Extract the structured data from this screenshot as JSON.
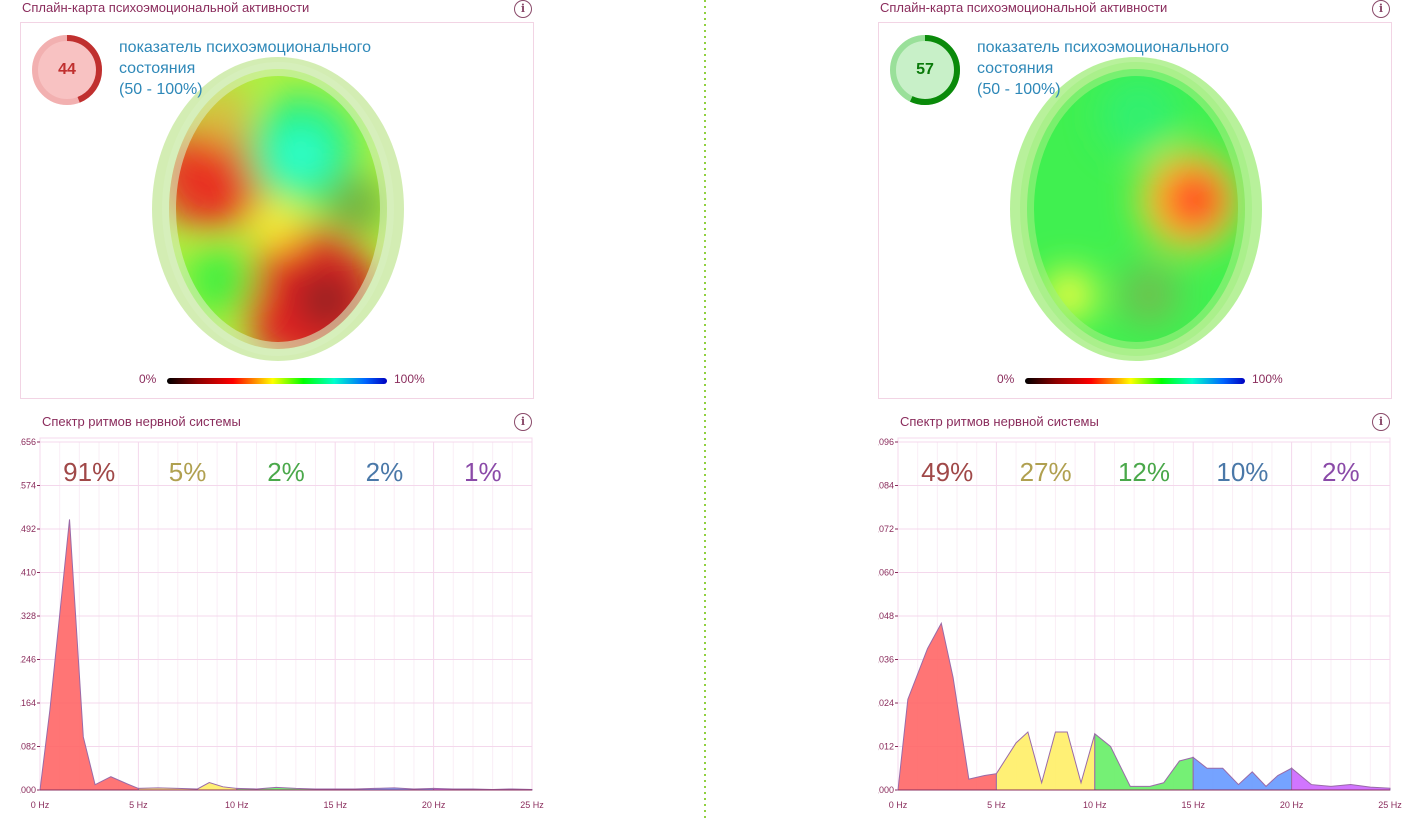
{
  "panels": [
    {
      "map_title": "Сплайн-карта психоэмоциональной активности",
      "gauge_value": "44",
      "gauge_fraction": 0.44,
      "gauge_color": "#c0302f",
      "gauge_fill": "#f8c2c2",
      "gauge_text_line1": "показатель психоэмоционального",
      "gauge_text_line2": "состояния",
      "gauge_text_line3": "(50 - 100%)",
      "scale_min": "0%",
      "scale_max": "100%",
      "spectrum_title": "Спектр ритмов нервной системы",
      "percents": [
        {
          "label": "91%",
          "color": "#a04848"
        },
        {
          "label": "5%",
          "color": "#b0a050"
        },
        {
          "label": "2%",
          "color": "#4aa84a"
        },
        {
          "label": "2%",
          "color": "#4a78a8"
        },
        {
          "label": "1%",
          "color": "#8a4aa8"
        }
      ],
      "chart_data": {
        "type": "area",
        "ylim": [
          0,
          0.656
        ],
        "y_ticks": [
          "0,656",
          "0,574",
          "0,492",
          "0,410",
          "0,328",
          "0,246",
          "0,164",
          "0,082",
          "0,000"
        ],
        "x_ticks": [
          "0 Hz",
          "5 Hz",
          "10 Hz",
          "15 Hz",
          "20 Hz",
          "25 Hz"
        ],
        "xlim": [
          0,
          25
        ],
        "series": [
          {
            "band": "delta",
            "color": "#ff6666",
            "x": [
              0,
              0.5,
              1.5,
              2.2,
              2.8,
              3.6,
              4.4,
              5
            ],
            "y": [
              0,
              0.15,
              0.51,
              0.1,
              0.01,
              0.025,
              0.012,
              0.003
            ]
          },
          {
            "band": "theta",
            "color": "#ffee66",
            "x": [
              5,
              6,
              7,
              8,
              8.6,
              9.3,
              10
            ],
            "y": [
              0.003,
              0.004,
              0.003,
              0.002,
              0.014,
              0.006,
              0.003
            ]
          },
          {
            "band": "alpha",
            "color": "#66ee66",
            "x": [
              10,
              11,
              12,
              13,
              14,
              15
            ],
            "y": [
              0.003,
              0.002,
              0.005,
              0.003,
              0.002,
              0.002
            ]
          },
          {
            "band": "beta",
            "color": "#6699ff",
            "x": [
              15,
              16,
              17,
              18,
              19,
              20
            ],
            "y": [
              0.002,
              0.002,
              0.003,
              0.004,
              0.002,
              0.003
            ]
          },
          {
            "band": "gamma",
            "color": "#cc66ff",
            "x": [
              20,
              21,
              22,
              23,
              24,
              25
            ],
            "y": [
              0.003,
              0.002,
              0.002,
              0.001,
              0.002,
              0.001
            ]
          }
        ]
      }
    },
    {
      "map_title": "Сплайн-карта психоэмоциональной активности",
      "gauge_value": "57",
      "gauge_fraction": 0.57,
      "gauge_color": "#0a8a0a",
      "gauge_fill": "#c8f0c8",
      "gauge_text_line1": "показатель психоэмоционального",
      "gauge_text_line2": "состояния",
      "gauge_text_line3": "(50 - 100%)",
      "scale_min": "0%",
      "scale_max": "100%",
      "spectrum_title": "Спектр ритмов нервной системы",
      "percents": [
        {
          "label": "49%",
          "color": "#a04848"
        },
        {
          "label": "27%",
          "color": "#b0a050"
        },
        {
          "label": "12%",
          "color": "#4aa84a"
        },
        {
          "label": "10%",
          "color": "#4a78a8"
        },
        {
          "label": "2%",
          "color": "#8a4aa8"
        }
      ],
      "chart_data": {
        "type": "area",
        "ylim": [
          0,
          0.096
        ],
        "y_ticks": [
          "0,096",
          "0,084",
          "0,072",
          "0,060",
          "0,048",
          "0,036",
          "0,024",
          "0,012",
          "0,000"
        ],
        "x_ticks": [
          "0 Hz",
          "5 Hz",
          "10 Hz",
          "15 Hz",
          "20 Hz",
          "25 Hz"
        ],
        "xlim": [
          0,
          25
        ],
        "series": [
          {
            "band": "delta",
            "color": "#ff6666",
            "x": [
              0,
              0.5,
              1.5,
              2.2,
              2.8,
              3.6,
              4.4,
              5
            ],
            "y": [
              0,
              0.025,
              0.039,
              0.046,
              0.031,
              0.003,
              0.004,
              0.0045
            ]
          },
          {
            "band": "theta",
            "color": "#ffee66",
            "x": [
              5,
              6,
              6.6,
              7.3,
              8,
              8.6,
              9.3,
              10
            ],
            "y": [
              0.0045,
              0.013,
              0.016,
              0.002,
              0.016,
              0.016,
              0.002,
              0.0155
            ]
          },
          {
            "band": "alpha",
            "color": "#66ee66",
            "x": [
              10,
              10.8,
              11.8,
              12.8,
              13.5,
              14.3,
              15
            ],
            "y": [
              0.0155,
              0.012,
              0.001,
              0.001,
              0.002,
              0.008,
              0.009
            ]
          },
          {
            "band": "beta",
            "color": "#6699ff",
            "x": [
              15,
              15.7,
              16.5,
              17.3,
              18,
              18.7,
              19.3,
              20
            ],
            "y": [
              0.009,
              0.006,
              0.006,
              0.0015,
              0.005,
              0.001,
              0.004,
              0.006
            ]
          },
          {
            "band": "gamma",
            "color": "#cc66ff",
            "x": [
              20,
              21,
              22,
              23,
              24,
              25
            ],
            "y": [
              0.006,
              0.0015,
              0.001,
              0.0015,
              0.0008,
              0.0005
            ]
          }
        ]
      }
    }
  ]
}
